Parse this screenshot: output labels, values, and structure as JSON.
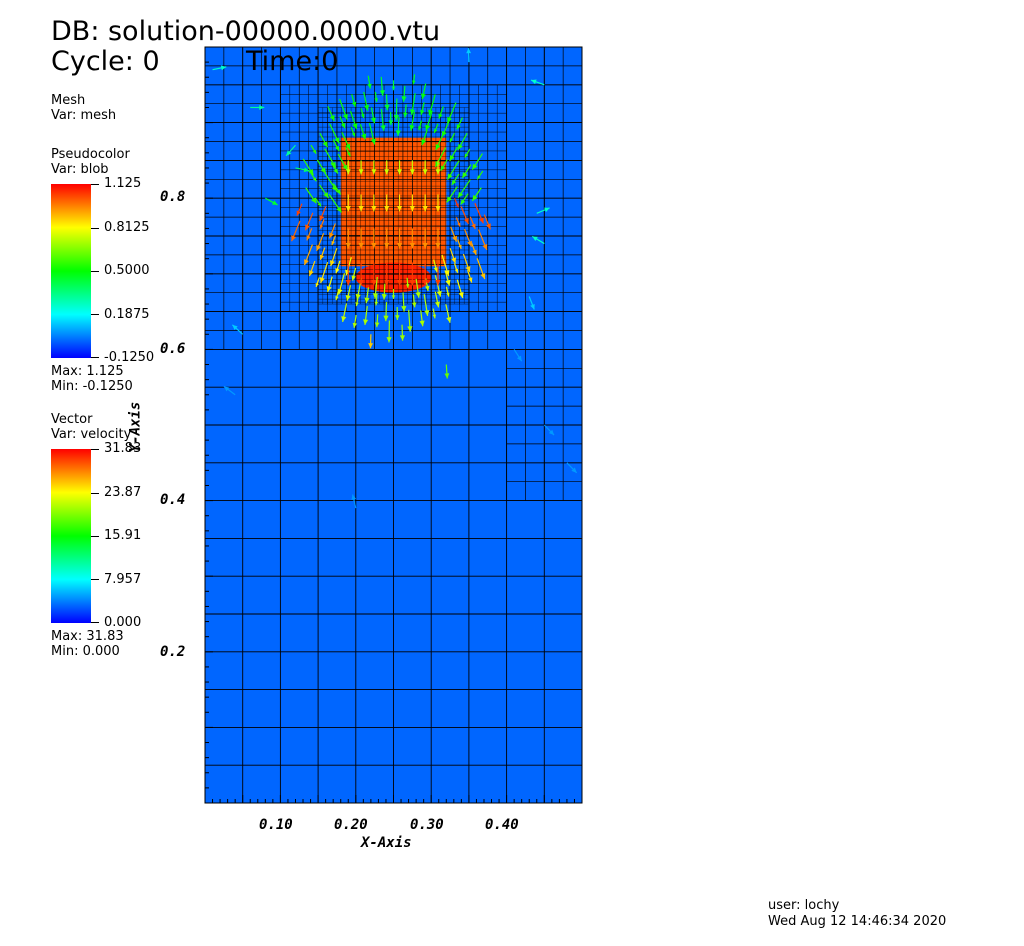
{
  "header": {
    "db_label": "DB: solution-00000.0000.vtu",
    "cycle_label": "Cycle: 0",
    "time_label": "Time:0"
  },
  "legend": {
    "mesh": {
      "title": "Mesh",
      "var": "Var: mesh"
    },
    "pseudocolor": {
      "title": "Pseudocolor",
      "var": "Var: blob",
      "ticks": [
        "1.125",
        "0.8125",
        "0.5000",
        "0.1875",
        "-0.1250"
      ],
      "max": "Max:  1.125",
      "min": "Min: -0.1250",
      "colors": [
        "#ff0000",
        "#ffff00",
        "#00ff00",
        "#00ffff",
        "#0000ff"
      ]
    },
    "vector": {
      "title": "Vector",
      "var": "Var: velocity",
      "ticks": [
        "31.83",
        "23.87",
        "15.91",
        "7.957",
        "0.000"
      ],
      "max": "Max:  31.83",
      "min": "Min:  0.000"
    }
  },
  "axes": {
    "x_title": "X-Axis",
    "y_title": "Y-Axis",
    "x_ticks": [
      "0.10",
      "0.20",
      "0.30",
      "0.40"
    ],
    "y_ticks": [
      "0.8",
      "0.6",
      "0.4",
      "0.2"
    ],
    "x_range": [
      0,
      0.5
    ],
    "y_range": [
      0,
      1.0
    ]
  },
  "field": {
    "background_color": "#0066ff",
    "blob_color": "#ff5500",
    "blob_center": [
      0.25,
      0.8
    ],
    "grid_line_color": "#000000"
  },
  "footer": {
    "user": "user: lochy",
    "date": "Wed Aug 12 14:46:34 2020"
  }
}
